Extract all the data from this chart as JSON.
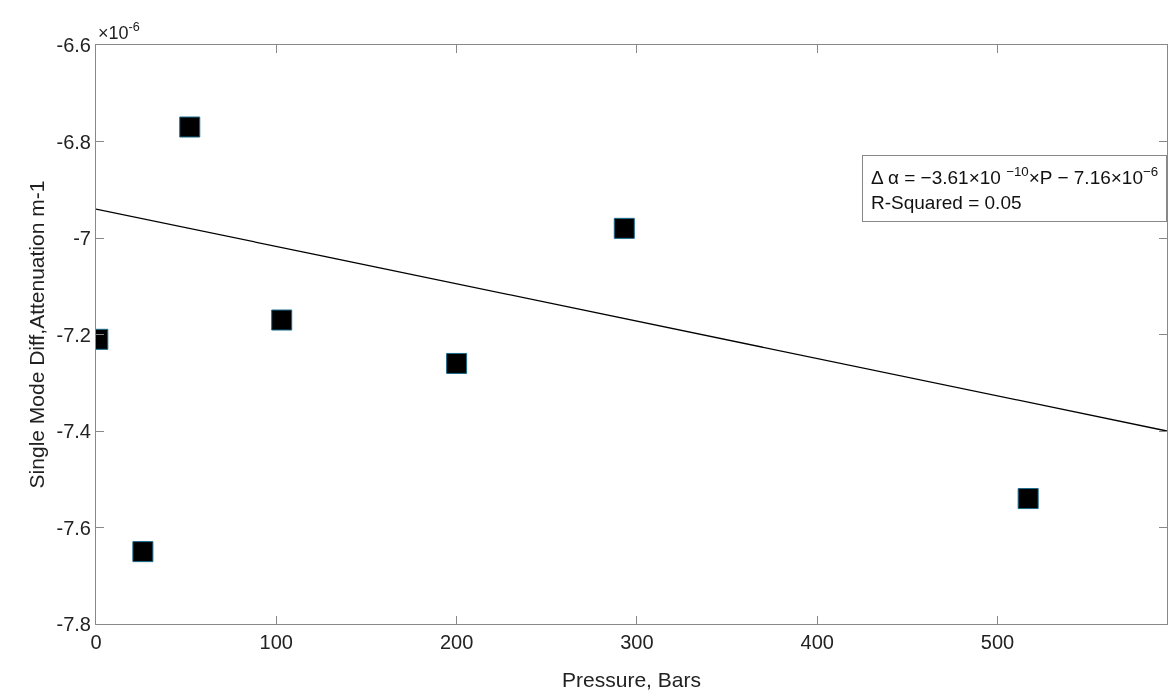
{
  "chart_data": {
    "type": "scatter",
    "xlabel": "Pressure, Bars",
    "ylabel": "Single Mode Diff,Attenuation m-1",
    "annotations": [
      "×10$^{-6}$",
      "Δ α = −3.61×10 $^{−10}$×P − 7.16×10$^{−6}$\nR-Squared = 0.05"
    ],
    "xlim": [
      0,
      594
    ],
    "xticks": [
      0,
      100,
      200,
      300,
      400,
      500
    ],
    "ylim": [
      -7.8,
      -6.6
    ],
    "yticks": [
      -7.8,
      -7.6,
      -7.4,
      -7.2,
      -7,
      -6.8,
      -6.6
    ],
    "grid": false,
    "legend": false,
    "series": [
      {
        "color": "#000000",
        "marker": "square",
        "x": [
          1,
          26,
          52,
          103,
          200,
          293,
          517
        ],
        "values": [
          -7.21,
          -7.65,
          -6.77,
          -7.17,
          -7.26,
          -6.98,
          -7.54
        ]
      },
      {
        "type": "line",
        "color": "#000000",
        "marker": "none",
        "line_style": "solid",
        "x": [
          0,
          594
        ],
        "values": [
          -6.94,
          -7.4
        ]
      }
    ]
  }
}
